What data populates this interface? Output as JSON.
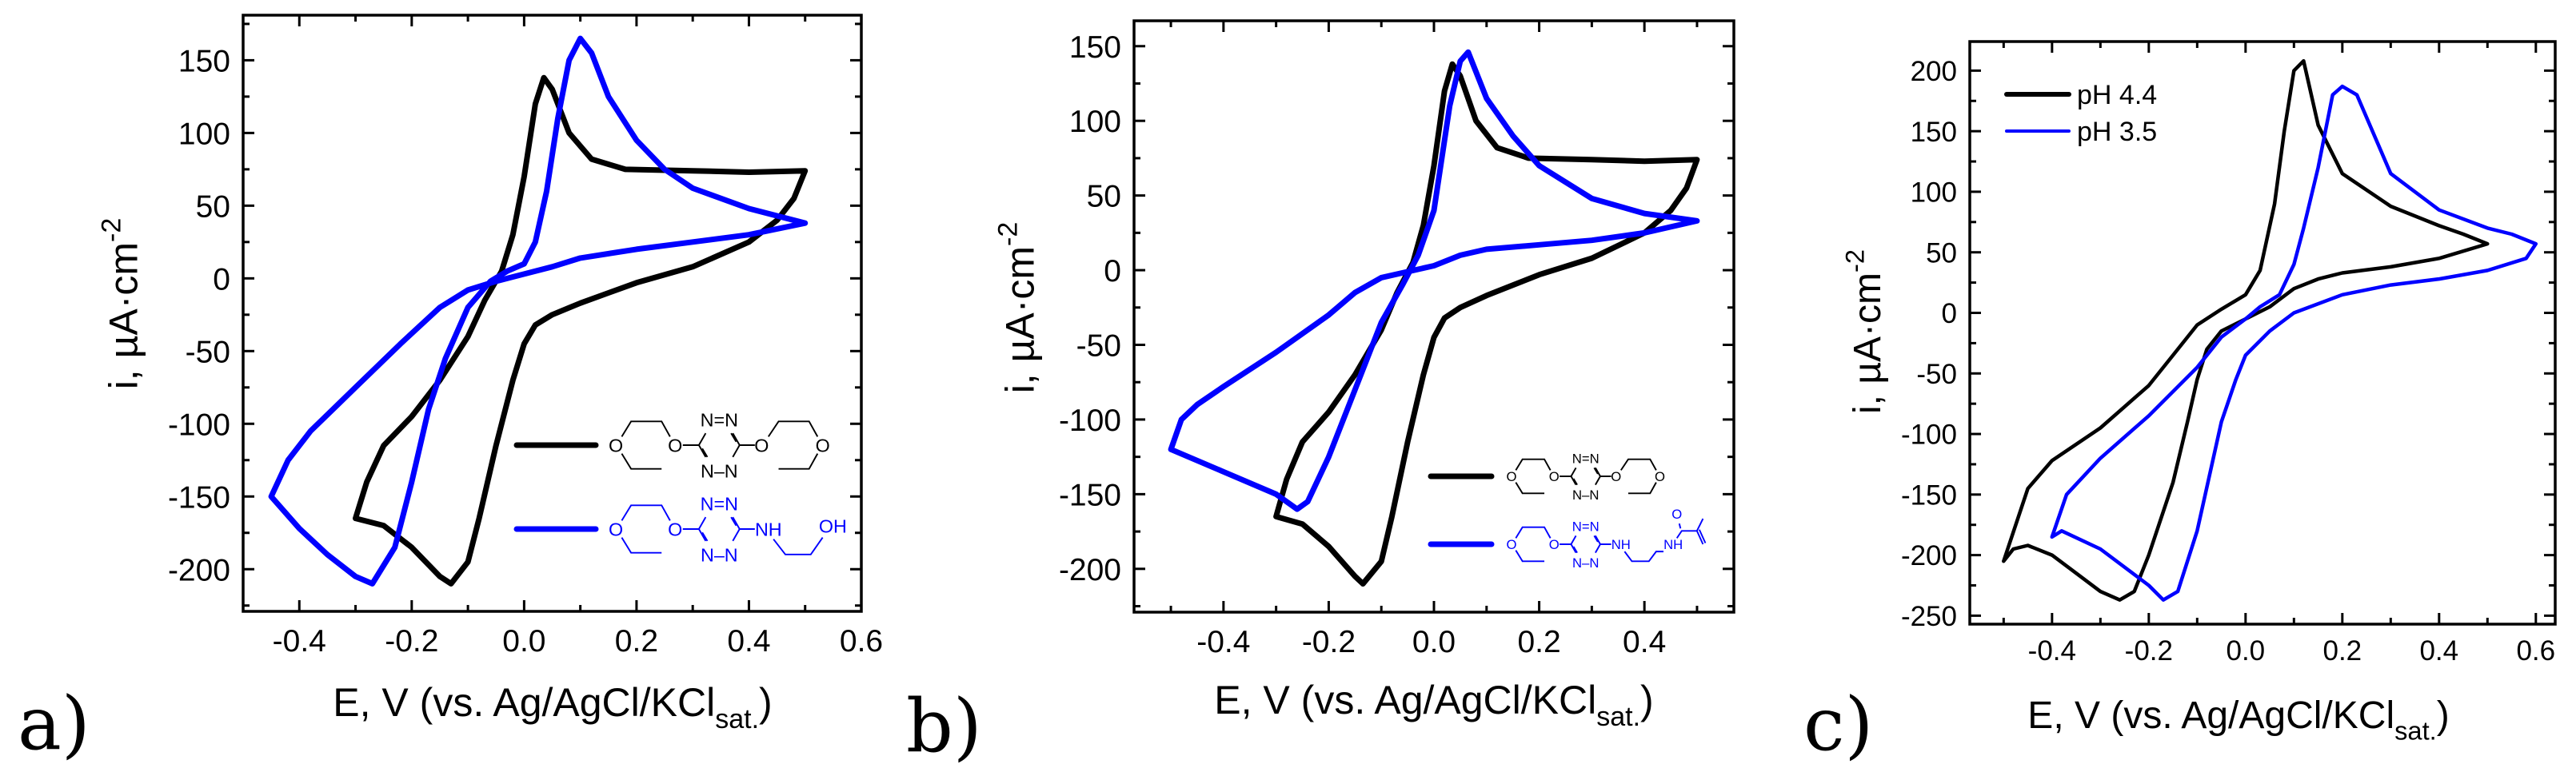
{
  "chart_data": [
    {
      "panel_label": "a)",
      "type": "line",
      "title": "",
      "xlabel": {
        "main": "E, V (vs. Ag/AgCl/KCl",
        "sub": "sat.",
        "end": ")"
      },
      "ylabel": {
        "main": "i, µA·cm",
        "sup": "-2"
      },
      "xlim": [
        -0.5,
        0.6
      ],
      "ylim": [
        -229,
        181
      ],
      "xticks": [
        -0.4,
        -0.2,
        0.0,
        0.2,
        0.4,
        0.6
      ],
      "yticks": [
        -200,
        -150,
        -100,
        -50,
        0,
        50,
        100,
        150
      ],
      "grid": false,
      "legend": {
        "placement": "lower-right",
        "entries": [
          {
            "color": "#000000",
            "structure": "bis-ether",
            "labels": [
              "O",
              "O",
              "N=N",
              "N–N",
              "O",
              "O"
            ]
          },
          {
            "color": "#0000ff",
            "structure": "ether-aminoethanol",
            "labels": [
              "O",
              "O",
              "N=N",
              "N–N",
              "NH",
              "OH"
            ]
          }
        ]
      },
      "series": [
        {
          "color": "#000000",
          "points": [
            [
              -0.3,
              -165
            ],
            [
              -0.28,
              -140
            ],
            [
              -0.25,
              -115
            ],
            [
              -0.2,
              -95
            ],
            [
              -0.15,
              -70
            ],
            [
              -0.1,
              -40
            ],
            [
              -0.07,
              -15
            ],
            [
              -0.04,
              5
            ],
            [
              -0.02,
              30
            ],
            [
              0.0,
              70
            ],
            [
              0.02,
              120
            ],
            [
              0.035,
              138
            ],
            [
              0.05,
              130
            ],
            [
              0.08,
              100
            ],
            [
              0.12,
              82
            ],
            [
              0.18,
              75
            ],
            [
              0.3,
              74
            ],
            [
              0.4,
              73
            ],
            [
              0.5,
              74
            ],
            [
              0.48,
              55
            ],
            [
              0.45,
              40
            ],
            [
              0.4,
              25
            ],
            [
              0.3,
              8
            ],
            [
              0.2,
              -3
            ],
            [
              0.15,
              -10
            ],
            [
              0.1,
              -17
            ],
            [
              0.05,
              -25
            ],
            [
              0.02,
              -32
            ],
            [
              0.0,
              -45
            ],
            [
              -0.02,
              -70
            ],
            [
              -0.05,
              -115
            ],
            [
              -0.08,
              -165
            ],
            [
              -0.1,
              -195
            ],
            [
              -0.13,
              -210
            ],
            [
              -0.15,
              -205
            ],
            [
              -0.2,
              -185
            ],
            [
              -0.25,
              -170
            ],
            [
              -0.3,
              -165
            ]
          ]
        },
        {
          "color": "#0000ff",
          "points": [
            [
              -0.45,
              -150
            ],
            [
              -0.42,
              -125
            ],
            [
              -0.38,
              -105
            ],
            [
              -0.3,
              -75
            ],
            [
              -0.22,
              -45
            ],
            [
              -0.15,
              -20
            ],
            [
              -0.1,
              -8
            ],
            [
              -0.05,
              -2
            ],
            [
              0.0,
              3
            ],
            [
              0.05,
              8
            ],
            [
              0.1,
              14
            ],
            [
              0.2,
              20
            ],
            [
              0.3,
              25
            ],
            [
              0.4,
              30
            ],
            [
              0.5,
              38
            ],
            [
              0.4,
              48
            ],
            [
              0.3,
              62
            ],
            [
              0.25,
              75
            ],
            [
              0.2,
              95
            ],
            [
              0.15,
              125
            ],
            [
              0.12,
              155
            ],
            [
              0.1,
              165
            ],
            [
              0.08,
              150
            ],
            [
              0.06,
              110
            ],
            [
              0.04,
              60
            ],
            [
              0.02,
              25
            ],
            [
              0.0,
              10
            ],
            [
              -0.03,
              5
            ],
            [
              -0.06,
              -2
            ],
            [
              -0.1,
              -20
            ],
            [
              -0.14,
              -55
            ],
            [
              -0.17,
              -90
            ],
            [
              -0.2,
              -140
            ],
            [
              -0.23,
              -185
            ],
            [
              -0.27,
              -210
            ],
            [
              -0.3,
              -205
            ],
            [
              -0.35,
              -190
            ],
            [
              -0.4,
              -172
            ],
            [
              -0.45,
              -150
            ]
          ]
        }
      ]
    },
    {
      "panel_label": "b)",
      "type": "line",
      "title": "",
      "xlabel": {
        "main": "E, V (vs. Ag/AgCl/KCl",
        "sub": "sat.",
        "end": ")"
      },
      "ylabel": {
        "main": "i, µA·cm",
        "sup": "-2"
      },
      "xlim": [
        -0.57,
        0.57
      ],
      "ylim": [
        -229,
        167
      ],
      "xticks": [
        -0.4,
        -0.2,
        0.0,
        0.2,
        0.4
      ],
      "yticks": [
        -200,
        -150,
        -100,
        -50,
        0,
        50,
        100,
        150
      ],
      "grid": false,
      "legend": {
        "placement": "lower-right",
        "entries": [
          {
            "color": "#000000",
            "structure": "bis-ether",
            "labels": [
              "O",
              "O",
              "N=N",
              "N–N",
              "O",
              "O"
            ]
          },
          {
            "color": "#0000ff",
            "structure": "ether-methacrylamide",
            "labels": [
              "O",
              "O",
              "N=N",
              "N–N",
              "NH",
              "NH",
              "O"
            ]
          }
        ]
      },
      "series": [
        {
          "color": "#000000",
          "points": [
            [
              -0.3,
              -165
            ],
            [
              -0.28,
              -140
            ],
            [
              -0.25,
              -115
            ],
            [
              -0.2,
              -95
            ],
            [
              -0.15,
              -70
            ],
            [
              -0.1,
              -40
            ],
            [
              -0.07,
              -15
            ],
            [
              -0.04,
              5
            ],
            [
              -0.02,
              30
            ],
            [
              0.0,
              70
            ],
            [
              0.02,
              120
            ],
            [
              0.035,
              138
            ],
            [
              0.05,
              130
            ],
            [
              0.08,
              100
            ],
            [
              0.12,
              82
            ],
            [
              0.18,
              75
            ],
            [
              0.3,
              74
            ],
            [
              0.4,
              73
            ],
            [
              0.5,
              74
            ],
            [
              0.48,
              55
            ],
            [
              0.45,
              40
            ],
            [
              0.4,
              25
            ],
            [
              0.3,
              8
            ],
            [
              0.2,
              -3
            ],
            [
              0.15,
              -10
            ],
            [
              0.1,
              -17
            ],
            [
              0.05,
              -25
            ],
            [
              0.02,
              -32
            ],
            [
              0.0,
              -45
            ],
            [
              -0.02,
              -70
            ],
            [
              -0.05,
              -115
            ],
            [
              -0.08,
              -165
            ],
            [
              -0.1,
              -195
            ],
            [
              -0.135,
              -210
            ],
            [
              -0.15,
              -205
            ],
            [
              -0.2,
              -185
            ],
            [
              -0.25,
              -170
            ],
            [
              -0.3,
              -165
            ]
          ]
        },
        {
          "color": "#0000ff",
          "points": [
            [
              -0.5,
              -120
            ],
            [
              -0.4,
              -135
            ],
            [
              -0.3,
              -150
            ],
            [
              -0.26,
              -160
            ],
            [
              -0.24,
              -155
            ],
            [
              -0.2,
              -125
            ],
            [
              -0.15,
              -80
            ],
            [
              -0.1,
              -35
            ],
            [
              -0.06,
              -10
            ],
            [
              -0.03,
              10
            ],
            [
              0.0,
              40
            ],
            [
              0.03,
              110
            ],
            [
              0.05,
              140
            ],
            [
              0.065,
              146
            ],
            [
              0.1,
              115
            ],
            [
              0.15,
              90
            ],
            [
              0.2,
              70
            ],
            [
              0.3,
              48
            ],
            [
              0.4,
              38
            ],
            [
              0.5,
              33
            ],
            [
              0.4,
              25
            ],
            [
              0.3,
              20
            ],
            [
              0.2,
              17
            ],
            [
              0.1,
              14
            ],
            [
              0.05,
              10
            ],
            [
              0.0,
              3
            ],
            [
              -0.1,
              -5
            ],
            [
              -0.15,
              -15
            ],
            [
              -0.2,
              -30
            ],
            [
              -0.3,
              -55
            ],
            [
              -0.4,
              -78
            ],
            [
              -0.45,
              -90
            ],
            [
              -0.48,
              -100
            ],
            [
              -0.5,
              -120
            ]
          ]
        }
      ]
    },
    {
      "panel_label": "c)",
      "type": "line",
      "title": "",
      "xlabel": {
        "main": "E, V (vs. Ag/AgCl/KCl",
        "sub": "sat.",
        "end": ")"
      },
      "ylabel": {
        "main": "i, µA·cm",
        "sup": "-2"
      },
      "xlim": [
        -0.57,
        0.64
      ],
      "ylim": [
        -257,
        224
      ],
      "xticks": [
        -0.4,
        -0.2,
        0.0,
        0.2,
        0.4,
        0.6
      ],
      "yticks": [
        -250,
        -200,
        -150,
        -100,
        -50,
        0,
        50,
        100,
        150,
        200
      ],
      "grid": false,
      "legend": {
        "placement": "top-left",
        "entries": [
          {
            "color": "#000000",
            "label": "pH 4.4"
          },
          {
            "color": "#0000ff",
            "label": "pH 3.5"
          }
        ]
      },
      "series": [
        {
          "name": "pH 4.4",
          "color": "#000000",
          "points": [
            [
              -0.5,
              -205
            ],
            [
              -0.48,
              -195
            ],
            [
              -0.45,
              -192
            ],
            [
              -0.4,
              -200
            ],
            [
              -0.35,
              -215
            ],
            [
              -0.3,
              -230
            ],
            [
              -0.26,
              -237
            ],
            [
              -0.23,
              -230
            ],
            [
              -0.2,
              -200
            ],
            [
              -0.15,
              -140
            ],
            [
              -0.12,
              -90
            ],
            [
              -0.1,
              -55
            ],
            [
              -0.08,
              -30
            ],
            [
              -0.05,
              -15
            ],
            [
              0.0,
              -5
            ],
            [
              0.05,
              5
            ],
            [
              0.1,
              20
            ],
            [
              0.15,
              28
            ],
            [
              0.2,
              33
            ],
            [
              0.3,
              38
            ],
            [
              0.4,
              45
            ],
            [
              0.5,
              57
            ],
            [
              0.45,
              65
            ],
            [
              0.4,
              72
            ],
            [
              0.3,
              88
            ],
            [
              0.2,
              115
            ],
            [
              0.15,
              155
            ],
            [
              0.12,
              208
            ],
            [
              0.1,
              200
            ],
            [
              0.08,
              150
            ],
            [
              0.06,
              90
            ],
            [
              0.03,
              35
            ],
            [
              0.0,
              15
            ],
            [
              -0.05,
              3
            ],
            [
              -0.1,
              -10
            ],
            [
              -0.15,
              -35
            ],
            [
              -0.2,
              -60
            ],
            [
              -0.3,
              -95
            ],
            [
              -0.4,
              -122
            ],
            [
              -0.45,
              -145
            ],
            [
              -0.5,
              -205
            ]
          ]
        },
        {
          "name": "pH 3.5",
          "color": "#0000ff",
          "points": [
            [
              -0.4,
              -185
            ],
            [
              -0.38,
              -180
            ],
            [
              -0.3,
              -195
            ],
            [
              -0.2,
              -225
            ],
            [
              -0.17,
              -237
            ],
            [
              -0.14,
              -230
            ],
            [
              -0.1,
              -180
            ],
            [
              -0.05,
              -90
            ],
            [
              -0.02,
              -55
            ],
            [
              0.0,
              -35
            ],
            [
              0.05,
              -15
            ],
            [
              0.1,
              0
            ],
            [
              0.2,
              15
            ],
            [
              0.3,
              23
            ],
            [
              0.4,
              28
            ],
            [
              0.5,
              35
            ],
            [
              0.58,
              45
            ],
            [
              0.6,
              57
            ],
            [
              0.55,
              65
            ],
            [
              0.5,
              70
            ],
            [
              0.4,
              85
            ],
            [
              0.3,
              115
            ],
            [
              0.23,
              180
            ],
            [
              0.2,
              187
            ],
            [
              0.18,
              180
            ],
            [
              0.15,
              120
            ],
            [
              0.12,
              70
            ],
            [
              0.1,
              40
            ],
            [
              0.07,
              15
            ],
            [
              0.03,
              5
            ],
            [
              0.0,
              -5
            ],
            [
              -0.05,
              -20
            ],
            [
              -0.1,
              -45
            ],
            [
              -0.2,
              -85
            ],
            [
              -0.3,
              -120
            ],
            [
              -0.37,
              -150
            ],
            [
              -0.4,
              -185
            ]
          ]
        }
      ]
    }
  ]
}
